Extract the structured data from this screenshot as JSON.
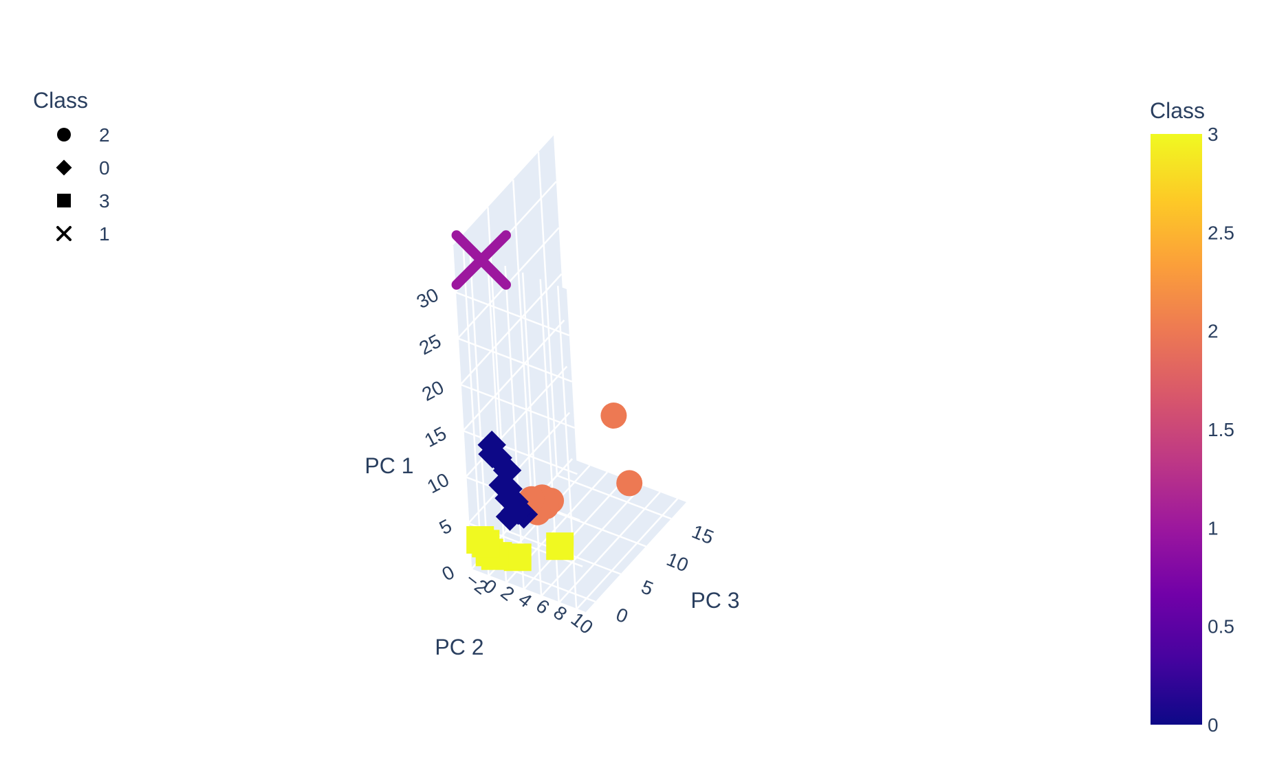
{
  "chart_data": {
    "type": "scatter3d",
    "title": "",
    "axes": {
      "x": {
        "label": "PC 2",
        "ticks": [
          -2,
          0,
          2,
          4,
          6,
          8,
          10
        ],
        "range": [
          -2,
          11
        ]
      },
      "y": {
        "label": "PC 3",
        "ticks": [
          0,
          5,
          10,
          15
        ],
        "range": [
          -2,
          18
        ]
      },
      "z": {
        "label": "PC 1",
        "ticks": [
          0,
          5,
          10,
          15,
          20,
          25,
          30
        ],
        "range": [
          0,
          35
        ]
      }
    },
    "grid": true,
    "legend": {
      "title": "Class",
      "placement": "top-left",
      "entries": [
        {
          "label": "2",
          "symbol": "circle"
        },
        {
          "label": "0",
          "symbol": "diamond"
        },
        {
          "label": "3",
          "symbol": "square"
        },
        {
          "label": "1",
          "symbol": "x"
        }
      ]
    },
    "colorbar": {
      "title": "Class",
      "min": 0,
      "max": 3,
      "ticks": [
        "0",
        "0.5",
        "1",
        "1.5",
        "2",
        "2.5",
        "3"
      ],
      "colorscale": [
        "#0d0887",
        "#46039f",
        "#7201a8",
        "#9c179e",
        "#bd3786",
        "#d8576b",
        "#ed7953",
        "#fb9f3a",
        "#fdca26",
        "#f0f921"
      ]
    },
    "series": [
      {
        "name": "2",
        "symbol": "circle",
        "class_value": 2,
        "color": "#ed7953",
        "points": [
          [
            3,
            2,
            7
          ],
          [
            4,
            3,
            6
          ],
          [
            3,
            3,
            5
          ],
          [
            4,
            4,
            6
          ],
          [
            3,
            4,
            6
          ],
          [
            5,
            15,
            9
          ],
          [
            7,
            14,
            3
          ]
        ]
      },
      {
        "name": "0",
        "symbol": "diamond",
        "class_value": 0,
        "color": "#0d0887",
        "points": [
          [
            0,
            0,
            13
          ],
          [
            0,
            0,
            12
          ],
          [
            0,
            1,
            11
          ],
          [
            1,
            0,
            9
          ],
          [
            1,
            1,
            8
          ],
          [
            1,
            1,
            7
          ],
          [
            1,
            2,
            6
          ],
          [
            1,
            1,
            5
          ],
          [
            1,
            2,
            5
          ],
          [
            2,
            1,
            6
          ],
          [
            2,
            2,
            5
          ],
          [
            1,
            1,
            10
          ]
        ]
      },
      {
        "name": "3",
        "symbol": "square",
        "class_value": 3,
        "color": "#f0f921",
        "points": [
          [
            -2,
            0,
            2
          ],
          [
            -1,
            0,
            1
          ],
          [
            0,
            0,
            1
          ],
          [
            -1,
            1,
            0
          ],
          [
            -2,
            1,
            1
          ],
          [
            1,
            2,
            0
          ],
          [
            6,
            2,
            3
          ]
        ]
      },
      {
        "name": "1",
        "symbol": "x",
        "class_value": 1,
        "color": "#9c179e",
        "points": [
          [
            0,
            0,
            33
          ]
        ]
      }
    ]
  }
}
